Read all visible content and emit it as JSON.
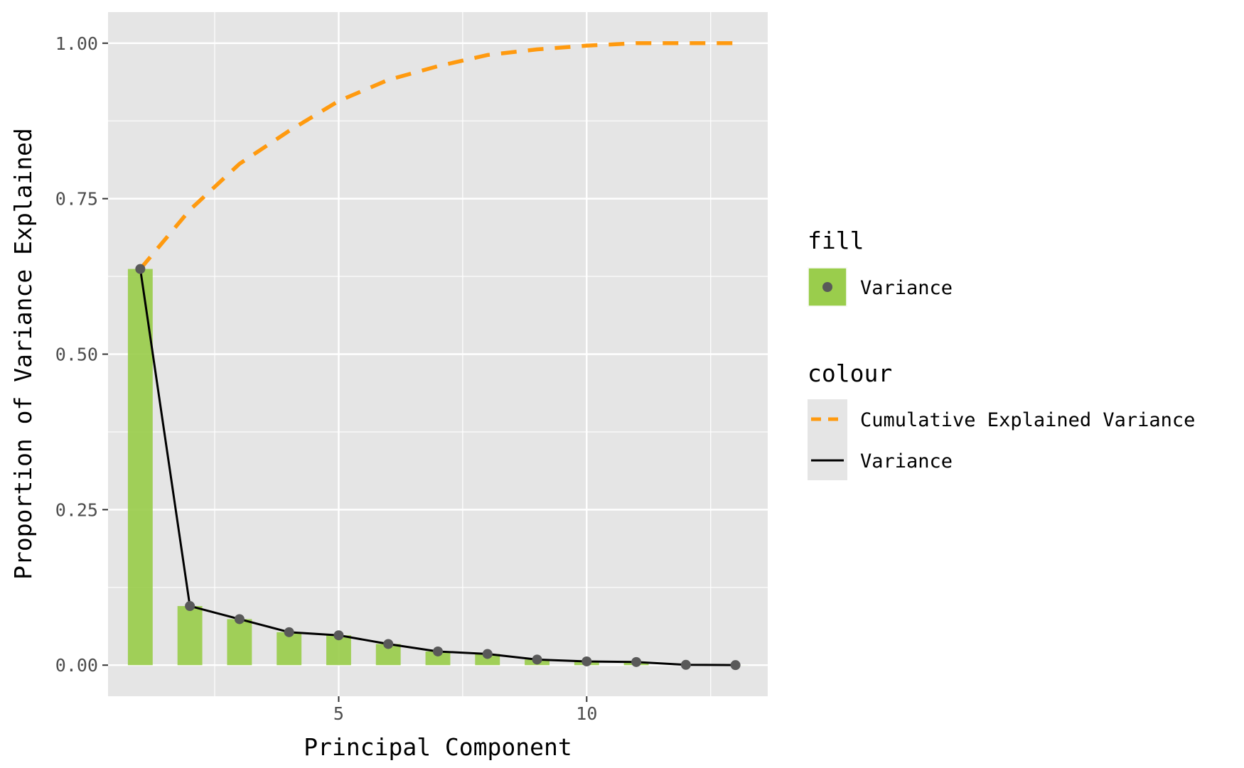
{
  "chart_data": {
    "type": "bar",
    "xlabel": "Principal Component",
    "ylabel": "Proportion of Variance Explained",
    "xlim": [
      0.35,
      13.65
    ],
    "ylim": [
      -0.05,
      1.05
    ],
    "x_ticks": [
      5,
      10
    ],
    "y_ticks": [
      0,
      0.25,
      0.5,
      0.75,
      1.0
    ],
    "y_tick_labels": [
      "0.00",
      "0.25",
      "0.50",
      "0.75",
      "1.00"
    ],
    "x_minor_gridlines": [
      2.5,
      7.5,
      12.5
    ],
    "y_minor_gridlines": [
      0.125,
      0.375,
      0.625,
      0.875
    ],
    "grid": true,
    "x": [
      1,
      2,
      3,
      4,
      5,
      6,
      7,
      8,
      9,
      10,
      11,
      12,
      13
    ],
    "series": [
      {
        "name": "Variance",
        "kind": "bar+line+point",
        "values": [
          0.637,
          0.095,
          0.074,
          0.053,
          0.048,
          0.034,
          0.022,
          0.018,
          0.009,
          0.006,
          0.005,
          0.0005,
          0.0001
        ]
      },
      {
        "name": "Cumulative Explained Variance",
        "kind": "dashed-line",
        "values": [
          0.637,
          0.732,
          0.806,
          0.859,
          0.907,
          0.941,
          0.963,
          0.981,
          0.99,
          0.996,
          1.0,
          1.0,
          1.0
        ]
      }
    ],
    "legend": {
      "placement": "right",
      "fill_title": "fill",
      "fill_items": [
        "Variance"
      ],
      "colour_title": "colour",
      "colour_items": [
        "Cumulative Explained Variance",
        "Variance"
      ]
    },
    "colors": {
      "panel_background": "#e5e5e5",
      "grid": "#ffffff",
      "bar_fill": "#9acd4c",
      "point": "#595959",
      "variance_line": "#000000",
      "cumulative_line": "#ff9a0f"
    }
  }
}
